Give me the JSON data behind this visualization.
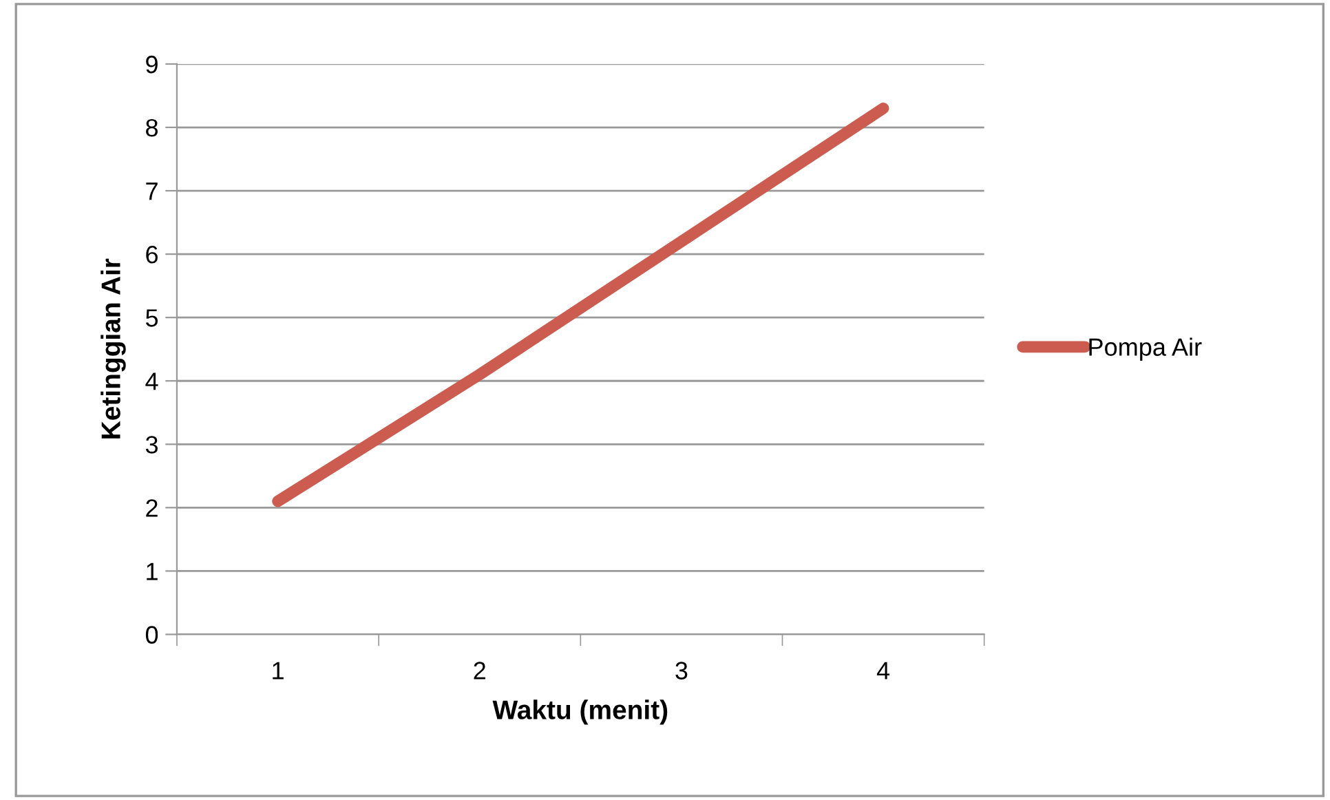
{
  "chart_data": {
    "type": "line",
    "xlabel": "Waktu (menit)",
    "ylabel": "Ketinggian Air",
    "categories": [
      "1",
      "2",
      "3",
      "4"
    ],
    "series": [
      {
        "name": "Pompa Air",
        "color": "#cd5c50",
        "values": [
          2.1,
          4.1,
          6.2,
          8.3
        ]
      }
    ],
    "ylim": [
      0,
      9
    ],
    "yticks": [
      0,
      1,
      2,
      3,
      4,
      5,
      6,
      7,
      8,
      9
    ],
    "grid": "y",
    "legend": "right",
    "marker": "none",
    "line_style": "solid"
  }
}
